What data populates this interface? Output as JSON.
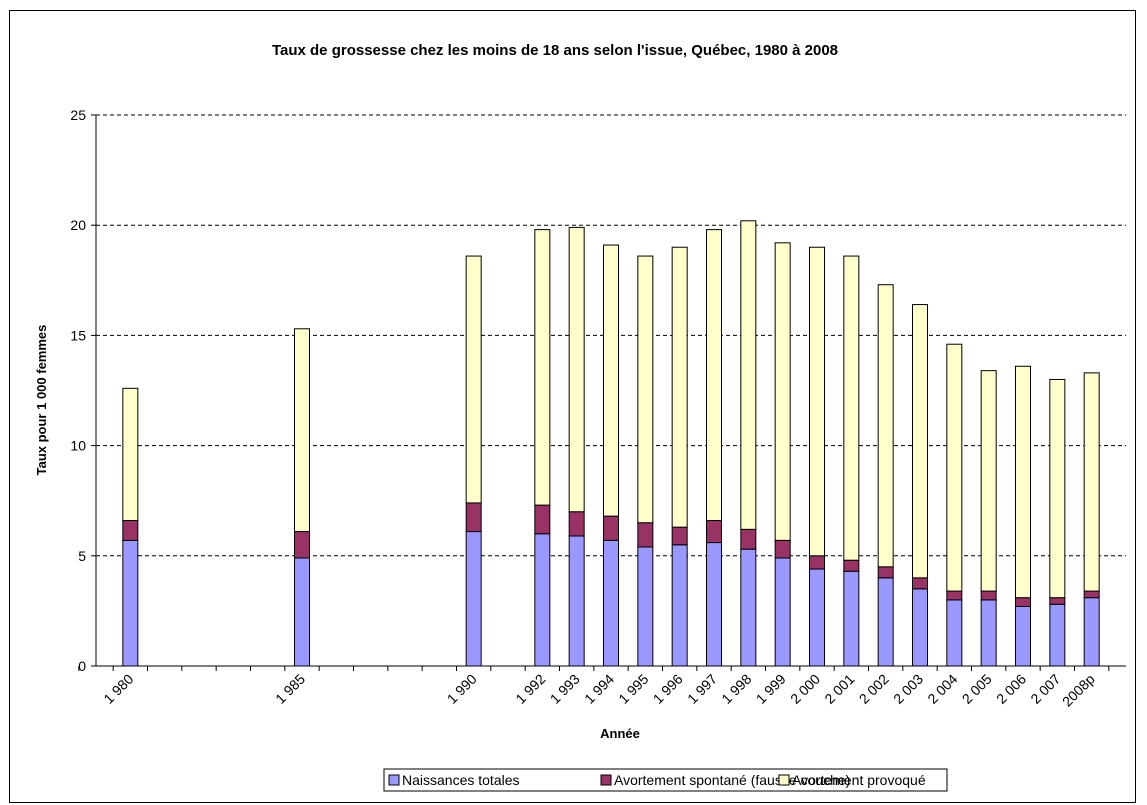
{
  "chart_data": {
    "type": "bar",
    "stacked": true,
    "title": "Taux de grossesse chez les moins de 18 ans selon l'issue, Québec, 1980 à 2008",
    "xlabel": "Année",
    "ylabel": "Taux pour 1 000 femmes",
    "ylim": [
      0,
      25
    ],
    "yticks": [
      "0",
      "5",
      "10",
      "15",
      "20",
      "25"
    ],
    "grid": "horizontal dashed",
    "legend_position": "bottom",
    "categories": [
      "1 980",
      "1 985",
      "1 990",
      "1 992",
      "1 993",
      "1 994",
      "1 995",
      "1 996",
      "1 997",
      "1 998",
      "1 999",
      "2 000",
      "2 001",
      "2 002",
      "2 003",
      "2 004",
      "2 005",
      "2 006",
      "2 007",
      "2008p"
    ],
    "x_years": [
      1980,
      1985,
      1990,
      1992,
      1993,
      1994,
      1995,
      1996,
      1997,
      1998,
      1999,
      2000,
      2001,
      2002,
      2003,
      2004,
      2005,
      2006,
      2007,
      2008
    ],
    "series": [
      {
        "name": "Naissances totales",
        "color": "#9999ff",
        "values": [
          5.7,
          4.9,
          6.1,
          6.0,
          5.9,
          5.7,
          5.4,
          5.5,
          5.6,
          5.3,
          4.9,
          4.4,
          4.3,
          4.0,
          3.5,
          3.0,
          3.0,
          2.7,
          2.8,
          3.1
        ]
      },
      {
        "name": "Avortement spontané (fausse couche)",
        "color": "#993366",
        "values": [
          0.9,
          1.2,
          1.3,
          1.3,
          1.1,
          1.1,
          1.1,
          0.8,
          1.0,
          0.9,
          0.8,
          0.6,
          0.5,
          0.5,
          0.5,
          0.4,
          0.4,
          0.4,
          0.3,
          0.3
        ]
      },
      {
        "name": "Avortement provoqué",
        "color": "#ffffcc",
        "values": [
          6.0,
          9.2,
          11.2,
          12.5,
          12.9,
          12.3,
          12.1,
          12.7,
          13.2,
          14.0,
          13.5,
          14.0,
          13.8,
          12.8,
          12.4,
          11.2,
          10.0,
          10.5,
          9.9,
          9.9
        ]
      }
    ]
  }
}
